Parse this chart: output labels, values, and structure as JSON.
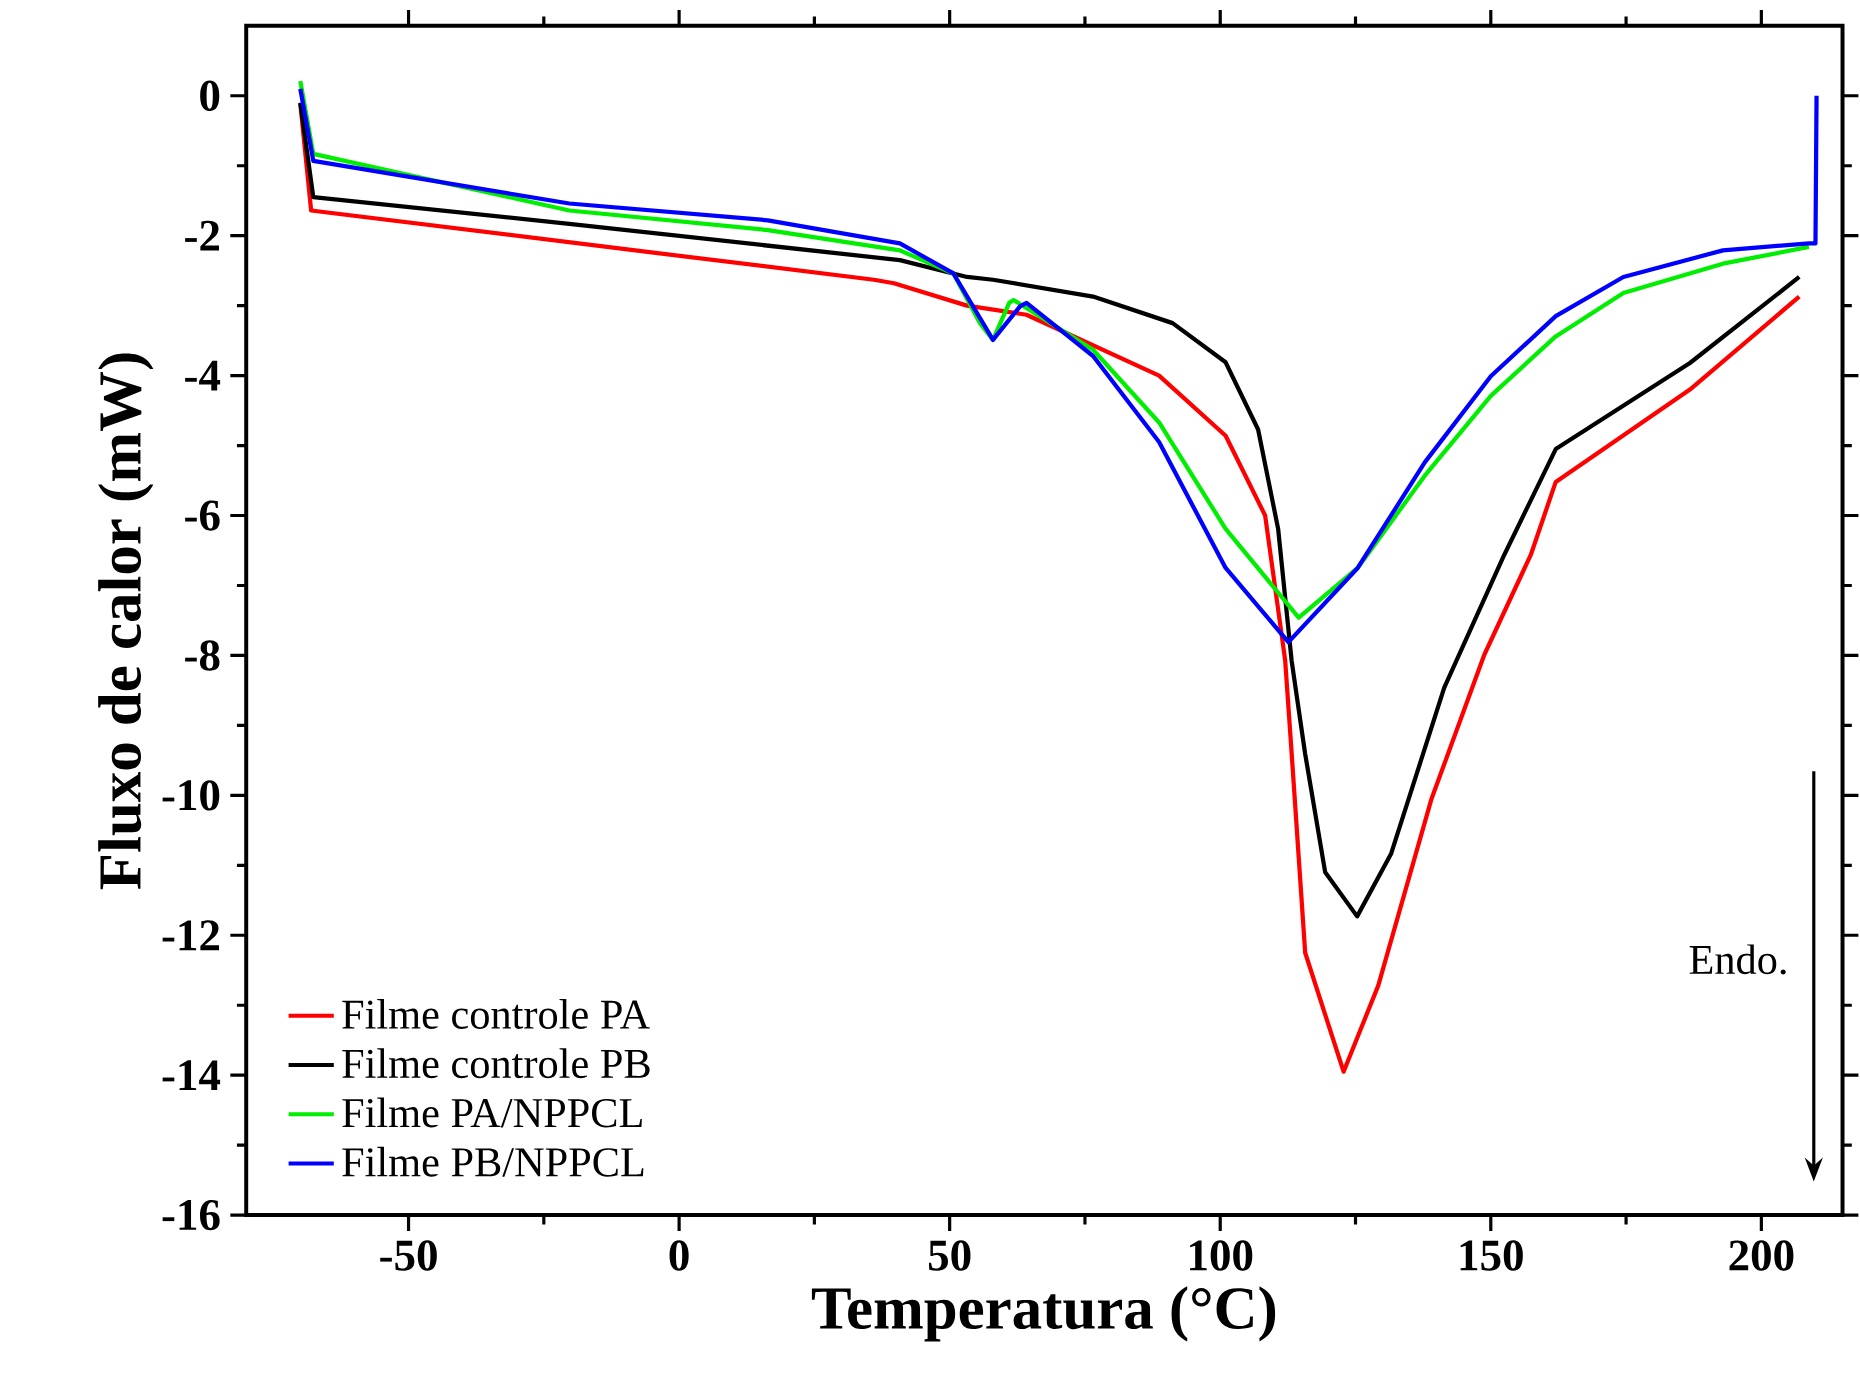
{
  "chart_data": {
    "type": "line",
    "xlabel": "Temperatura (°C)",
    "ylabel": "Fluxo de calor (mW)",
    "xlim": [
      -80,
      215
    ],
    "ylim": [
      -16,
      1
    ],
    "xticks": [
      -50,
      0,
      50,
      100,
      150,
      200
    ],
    "yticks": [
      -16,
      -14,
      -12,
      -10,
      -8,
      -6,
      -4,
      -2,
      0
    ],
    "legend": "bottom left",
    "annotations": [
      "Endo."
    ],
    "series": [
      {
        "name": "Filme controle PA",
        "color": "#ff0000",
        "x": [
          -70,
          -68,
          36,
          39.7,
          53.2,
          64.2,
          88.7,
          101,
          108.3,
          112,
          113.2,
          115.7,
          122.8,
          129.2,
          139,
          148.8,
          157.4,
          162,
          186.8,
          207
        ],
        "values": [
          -0.11,
          -1.64,
          -2.63,
          -2.68,
          -3.0,
          -3.13,
          -4.0,
          -4.86,
          -6.0,
          -8.07,
          -9.4,
          -12.25,
          -13.95,
          -12.72,
          -10.06,
          -7.99,
          -6.56,
          -5.52,
          -4.2,
          -2.87
        ]
      },
      {
        "name": "Filme controle PB",
        "color": "#000000",
        "x": [
          -70,
          -67.6,
          -20.3,
          40.8,
          53.2,
          58,
          76.5,
          91.2,
          101,
          107,
          110.7,
          113.2,
          115.7,
          119.4,
          125.3,
          131.6,
          141.4,
          152.5,
          162,
          186.8,
          207
        ],
        "values": [
          -0.1,
          -1.45,
          -1.83,
          -2.35,
          -2.59,
          -2.63,
          -2.87,
          -3.25,
          -3.81,
          -4.77,
          -6.19,
          -8.08,
          -9.41,
          -11.1,
          -11.73,
          -10.83,
          -8.46,
          -6.56,
          -5.05,
          -3.82,
          -2.59
        ]
      },
      {
        "name": "Filme PA/NPPCL",
        "color": "#00ee00",
        "x": [
          -70,
          -67.6,
          -20.3,
          16.4,
          40.8,
          50.7,
          55.6,
          58,
          61,
          61.8,
          76.5,
          88.7,
          101,
          114.5,
          125.4,
          137.8,
          150,
          162,
          174.5,
          192.9,
          208.8
        ],
        "values": [
          0.21,
          -0.83,
          -1.64,
          -1.92,
          -2.21,
          -2.54,
          -3.25,
          -3.49,
          -2.96,
          -2.92,
          -3.63,
          -4.67,
          -6.19,
          -7.46,
          -6.75,
          -5.43,
          -4.29,
          -3.44,
          -2.82,
          -2.4,
          -2.16
        ]
      },
      {
        "name": "Filme PB/NPPCL",
        "color": "#0000ff",
        "x": [
          -70,
          -67.6,
          -20.3,
          16.4,
          40.8,
          50.7,
          58,
          63,
          64.2,
          76.5,
          88.7,
          101,
          112.6,
          125.4,
          137.8,
          150,
          162,
          174.5,
          192.9,
          208.8,
          210,
          210.2
        ],
        "values": [
          0.1,
          -0.93,
          -1.54,
          -1.78,
          -2.11,
          -2.54,
          -3.49,
          -3.01,
          -2.96,
          -3.72,
          -4.95,
          -6.75,
          -7.81,
          -6.75,
          -5.24,
          -4.01,
          -3.15,
          -2.59,
          -2.21,
          -2.11,
          -2.11,
          0
        ]
      }
    ]
  }
}
